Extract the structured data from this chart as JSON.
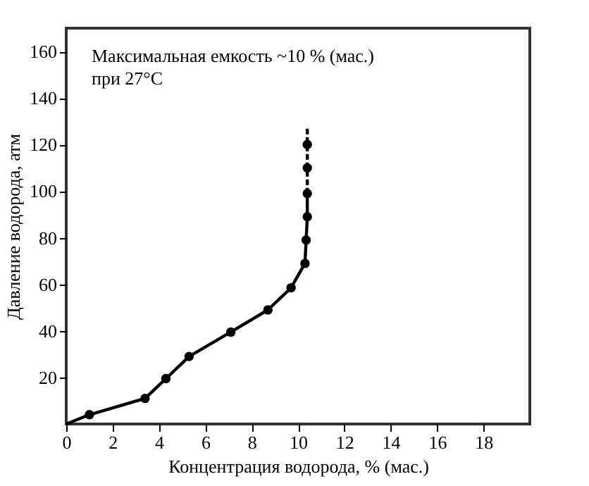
{
  "chart_data": {
    "type": "line",
    "xlabel": "Концентрация водорода, % (мас.)",
    "ylabel": "Давление водорода, атм",
    "annotations": [
      "Максимальная емкость ~10 % (мас.)",
      "при 27°C"
    ],
    "xlim": [
      0,
      20
    ],
    "ylim": [
      0,
      170
    ],
    "xticks": [
      0,
      2,
      4,
      6,
      8,
      10,
      12,
      14,
      16,
      18
    ],
    "yticks": [
      20,
      40,
      60,
      80,
      100,
      120,
      140,
      160
    ],
    "series": [
      {
        "color": "#000000",
        "line_style": "solid",
        "marker": "none",
        "x": [
          0,
          1,
          3.4,
          4.3,
          5.3,
          7.1,
          8.7,
          9.7,
          10.3,
          10.35,
          10.4,
          10.4
        ],
        "values": [
          0,
          4,
          11,
          19.5,
          29,
          39.5,
          49,
          58.5,
          69,
          79,
          89,
          99
        ]
      },
      {
        "color": "#000000",
        "line_style": "dashed",
        "marker": "none",
        "x": [
          10.4,
          10.4,
          10.4,
          10.4
        ],
        "values": [
          99,
          110,
          120,
          127
        ]
      },
      {
        "type": "scatter",
        "color": "#000000",
        "marker": "circle",
        "x": [
          1,
          3.4,
          4.3,
          5.3,
          7.1,
          8.7,
          9.7,
          10.3,
          10.35,
          10.4,
          10.4,
          10.4,
          10.4
        ],
        "values": [
          4,
          11,
          19.5,
          29,
          39.5,
          49,
          58.5,
          69,
          79,
          89,
          99,
          110,
          120
        ]
      }
    ]
  }
}
